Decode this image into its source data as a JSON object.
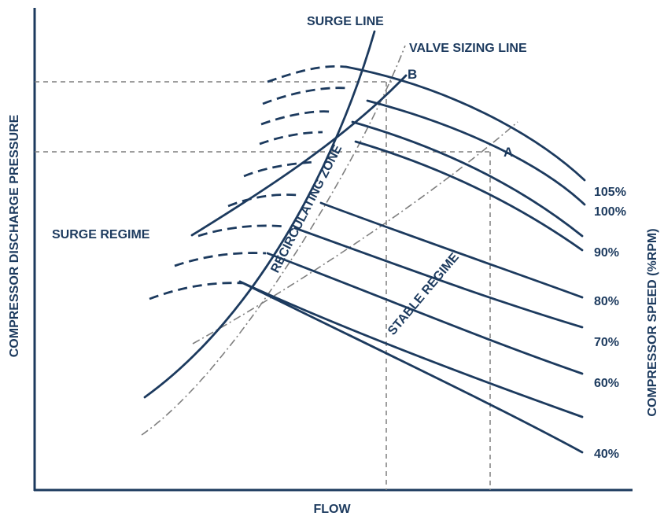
{
  "axes": {
    "x_label": "FLOW",
    "y_label_left": "COMPRESSOR DISCHARGE PRESSURE",
    "y_label_right": "COMPRESSOR SPEED (%RPM)"
  },
  "lines": {
    "surge_line": "SURGE LINE",
    "valve_sizing_line": "VALVE SIZING LINE"
  },
  "regions": {
    "surge_regime": "SURGE REGIME",
    "recirculating_zone": "RECIRCULATING ZONE",
    "stable_regime": "STABLE REGIME"
  },
  "points": {
    "a": "A",
    "b": "B"
  },
  "speed_curves": [
    "105%",
    "100%",
    "90%",
    "80%",
    "70%",
    "60%",
    "40%"
  ],
  "colors": {
    "curve": "#1c3a5e",
    "guide": "#7f7f7f"
  }
}
